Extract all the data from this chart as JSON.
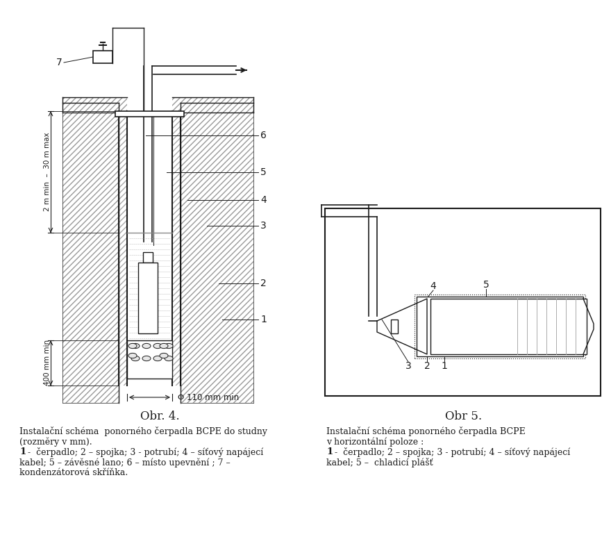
{
  "bg_color": "#ffffff",
  "line_color": "#1a1a1a",
  "fig_width": 8.8,
  "fig_height": 7.99,
  "obr4_title": "Obr. 4.",
  "obr5_title": "Obr 5.",
  "obr4_line1": "Instalační schéma  ponorného čerpadla BCPE do studny",
  "obr4_line2": "(rozměry v mm).",
  "obr4_line3a": "1",
  "obr4_line3b": " -  čerpadlo; 2 – spojka; 3 - potrubí; 4 – síťový napájecí",
  "obr4_line4": "kabel; 5 – závěsné lano; 6 – místo upevnění ; 7 –",
  "obr4_line5": "kondenzátorová skříňka.",
  "obr5_line1": "Instalační schéma ponorného čerpadla BCPE",
  "obr5_line2": "v horizontální poloze :",
  "obr5_line3a": "1",
  "obr5_line3b": " -  čerpadlo; 2 – spojka; 3 - potrubí; 4 – síťový napájecí",
  "obr5_line4": "kabel; 5 –  chladicí plášť"
}
